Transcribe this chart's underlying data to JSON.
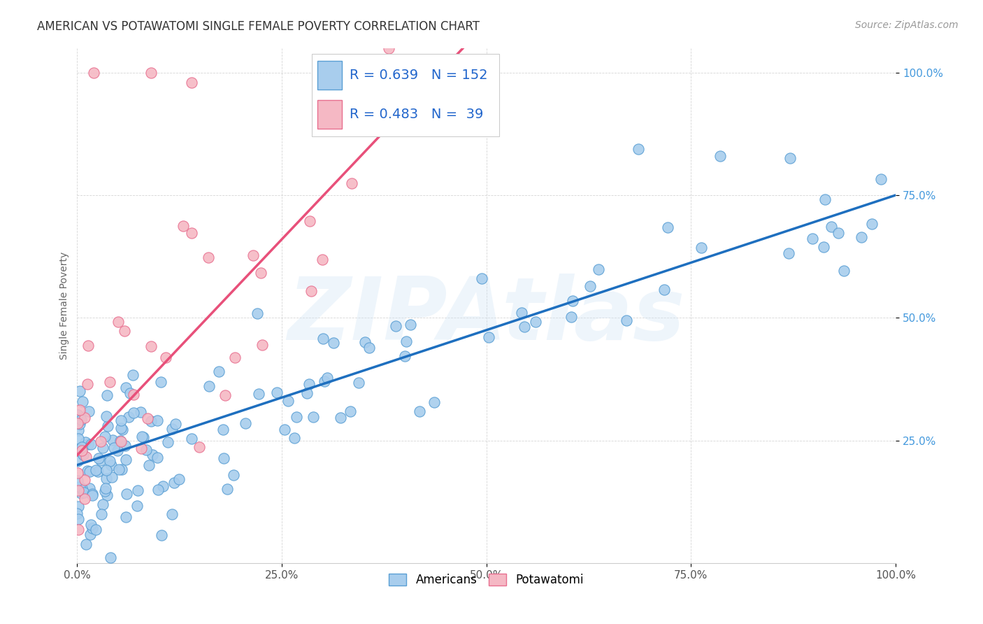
{
  "title": "AMERICAN VS POTAWATOMI SINGLE FEMALE POVERTY CORRELATION CHART",
  "source": "Source: ZipAtlas.com",
  "ylabel": "Single Female Poverty",
  "legend_americans": "Americans",
  "legend_potawatomi": "Potawatomi",
  "R_americans": 0.639,
  "N_americans": 152,
  "R_potawatomi": 0.483,
  "N_potawatomi": 39,
  "color_americans": "#A8CDED",
  "color_potawatomi": "#F5B8C4",
  "edge_color_americans": "#5A9FD4",
  "edge_color_potawatomi": "#E87090",
  "line_color_americans": "#1E6FBF",
  "line_color_potawatomi": "#E8507A",
  "tick_color": "#4499DD",
  "xlim": [
    0.0,
    1.0
  ],
  "ylim": [
    0.0,
    1.05
  ],
  "xtick_labels": [
    "0.0%",
    "25.0%",
    "50.0%",
    "75.0%",
    "100.0%"
  ],
  "xtick_positions": [
    0.0,
    0.25,
    0.5,
    0.75,
    1.0
  ],
  "ytick_labels": [
    "25.0%",
    "50.0%",
    "75.0%",
    "100.0%"
  ],
  "ytick_positions": [
    0.25,
    0.5,
    0.75,
    1.0
  ],
  "background_color": "#FFFFFF",
  "watermark_text": "ZIPAtlas",
  "title_fontsize": 12,
  "axis_label_fontsize": 10,
  "tick_fontsize": 11,
  "source_fontsize": 10
}
